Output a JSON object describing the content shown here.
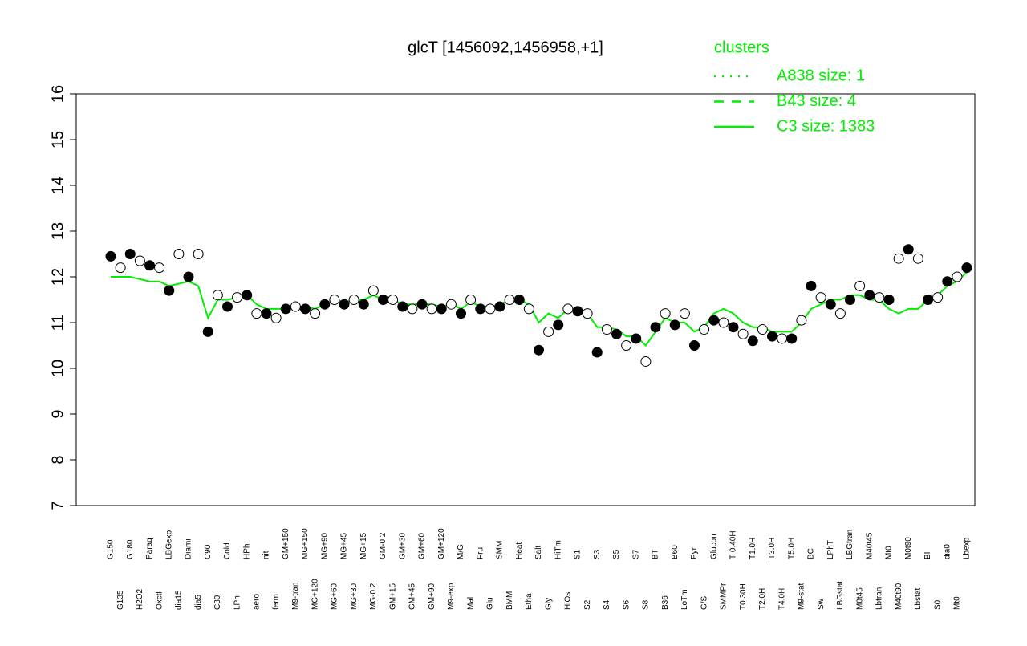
{
  "chart_data": {
    "type": "line",
    "title": "glcT [1456092,1456958,+1]",
    "ylim": [
      7,
      16
    ],
    "yticks": [
      7,
      8,
      9,
      10,
      11,
      12,
      13,
      14,
      15,
      16
    ],
    "legend": {
      "title": "clusters",
      "color": "#00ee00",
      "entries": [
        {
          "name": "A838 size: 1",
          "style": "dotted"
        },
        {
          "name": "B43 size: 4",
          "style": "dashed"
        },
        {
          "name": "C3 size: 1383",
          "style": "solid"
        }
      ]
    },
    "categories": [
      "G150",
      "G135",
      "G180",
      "H2O2",
      "Paraq",
      "Oxctl",
      "LBGexp",
      "dia15",
      "Diami",
      "dia5",
      "C90",
      "C30",
      "Cold",
      "LPh",
      "HPh",
      "aero",
      "nit",
      "ferm",
      "GM+150",
      "M9-tran",
      "MG+150",
      "MG+120",
      "MG+90",
      "MG+60",
      "MG+45",
      "MG+30",
      "MG+15",
      "MG-0.2",
      "GM-0.2",
      "GM+15",
      "GM+30",
      "GM+45",
      "GM+60",
      "GM+90",
      "GM+120",
      "M9-exp",
      "M/G",
      "Mal",
      "Fru",
      "Glu",
      "SMM",
      "BMM",
      "Heat",
      "Etha",
      "Salt",
      "Gly",
      "HiTm",
      "HiOs",
      "S1",
      "S2",
      "S3",
      "S4",
      "S5",
      "S6",
      "S7",
      "S8",
      "BT",
      "B36",
      "B60",
      "LoTm",
      "Pyr",
      "G/S",
      "Glucon",
      "SMMPr",
      "T-0.40H",
      "T0.30H",
      "T1.0H",
      "T2.0H",
      "T3.0H",
      "T4.0H",
      "T5.0H",
      "M9-stat",
      "BC",
      "Sw",
      "LPhT",
      "LBGstat",
      "LBGtran",
      "M0t45",
      "M40t45",
      "Lbtran",
      "Mt0",
      "M40t90",
      "M0t90",
      "Lbstat",
      "BI",
      "S0",
      "dia0",
      "Mt0",
      "Lbexp"
    ],
    "values": [
      12.45,
      12.2,
      12.5,
      12.35,
      12.25,
      12.2,
      11.7,
      12.5,
      12.0,
      12.5,
      10.8,
      11.6,
      11.35,
      11.55,
      11.6,
      11.2,
      11.2,
      11.1,
      11.3,
      11.35,
      11.3,
      11.2,
      11.4,
      11.5,
      11.4,
      11.5,
      11.4,
      11.7,
      11.5,
      11.5,
      11.35,
      11.3,
      11.4,
      11.3,
      11.3,
      11.4,
      11.2,
      11.5,
      11.3,
      11.3,
      11.35,
      11.5,
      11.5,
      11.3,
      10.4,
      10.8,
      10.95,
      11.3,
      11.25,
      11.2,
      10.35,
      10.85,
      10.75,
      10.5,
      10.65,
      10.15,
      10.9,
      11.2,
      10.95,
      11.2,
      10.5,
      10.85,
      11.05,
      11.0,
      10.9,
      10.75,
      10.6,
      10.85,
      10.7,
      10.65,
      10.65,
      11.05,
      11.8,
      11.55,
      11.4,
      11.2,
      11.5,
      11.8,
      11.6,
      11.55,
      11.5,
      12.4,
      12.6,
      12.4,
      11.5,
      11.55,
      11.9,
      12.0,
      12.2
    ],
    "point_color": "#000000",
    "series": [
      {
        "name": "C3 size: 1383",
        "color": "#00ee00",
        "values": [
          12.0,
          12.0,
          12.0,
          11.95,
          11.9,
          11.9,
          11.8,
          11.85,
          11.9,
          11.8,
          11.1,
          11.5,
          11.5,
          11.55,
          11.6,
          11.4,
          11.3,
          11.3,
          11.3,
          11.35,
          11.35,
          11.3,
          11.4,
          11.5,
          11.45,
          11.5,
          11.5,
          11.6,
          11.5,
          11.5,
          11.4,
          11.4,
          11.4,
          11.4,
          11.35,
          11.4,
          11.3,
          11.45,
          11.35,
          11.35,
          11.4,
          11.5,
          11.5,
          11.4,
          11.0,
          11.2,
          11.1,
          11.3,
          11.3,
          11.2,
          10.9,
          10.9,
          10.85,
          10.7,
          10.7,
          10.5,
          10.8,
          11.1,
          11.0,
          11.0,
          10.8,
          10.9,
          11.2,
          11.3,
          11.2,
          11.0,
          10.9,
          10.9,
          10.8,
          10.8,
          10.8,
          11.0,
          11.3,
          11.4,
          11.5,
          11.5,
          11.6,
          11.6,
          11.5,
          11.5,
          11.3,
          11.2,
          11.3,
          11.3,
          11.5,
          11.6,
          11.8,
          11.9,
          12.1
        ]
      }
    ]
  }
}
